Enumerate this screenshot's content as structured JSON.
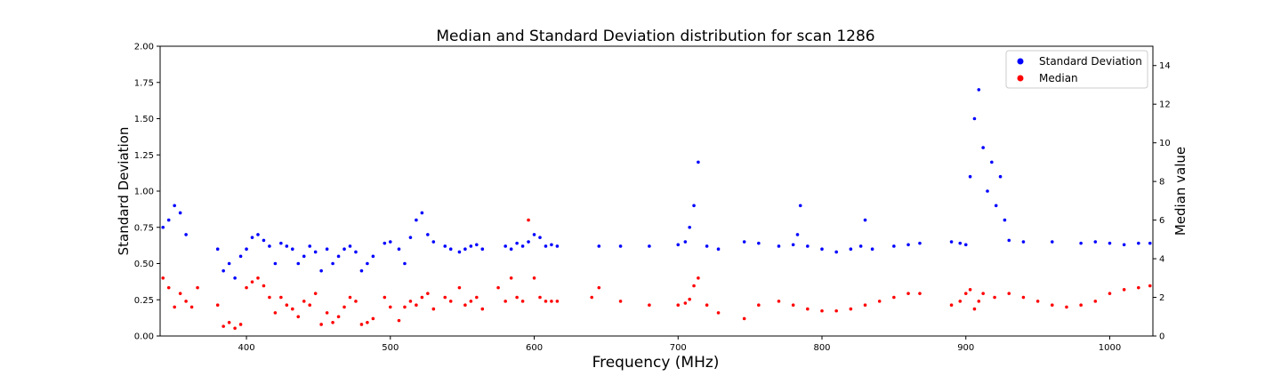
{
  "chart_data": {
    "type": "scatter",
    "title": "Median and Standard Deviation distribution for scan 1286",
    "xlabel": "Frequency (MHz)",
    "ylabel": "Standard Deviation",
    "y2label": "Median value",
    "xlim": [
      340,
      1030
    ],
    "ylim": [
      0,
      2.0
    ],
    "y2lim": [
      0,
      15
    ],
    "x_ticks": [
      400,
      500,
      600,
      700,
      800,
      900,
      1000
    ],
    "y_ticks": [
      "0.00",
      "0.25",
      "0.50",
      "0.75",
      "1.00",
      "1.25",
      "1.50",
      "1.75",
      "2.00"
    ],
    "y2_ticks": [
      0,
      2,
      4,
      6,
      8,
      10,
      12,
      14
    ],
    "legend_position": "top-right",
    "grid": false,
    "series": [
      {
        "name": "Standard Deviation",
        "axis": "left",
        "color": "#0000ff",
        "x": [
          342,
          346,
          350,
          354,
          358,
          380,
          384,
          388,
          392,
          396,
          400,
          404,
          408,
          412,
          416,
          420,
          424,
          428,
          432,
          436,
          440,
          444,
          448,
          452,
          456,
          460,
          464,
          468,
          472,
          476,
          480,
          484,
          488,
          496,
          500,
          506,
          510,
          514,
          518,
          522,
          526,
          530,
          538,
          542,
          548,
          552,
          556,
          560,
          564,
          580,
          584,
          588,
          592,
          596,
          600,
          604,
          608,
          612,
          616,
          645,
          660,
          680,
          700,
          705,
          708,
          711,
          714,
          720,
          728,
          746,
          756,
          770,
          780,
          783,
          785,
          790,
          800,
          810,
          820,
          827,
          830,
          835,
          850,
          860,
          868,
          890,
          896,
          900,
          903,
          906,
          909,
          912,
          915,
          918,
          921,
          924,
          927,
          930,
          940,
          960,
          980,
          990,
          1000,
          1010,
          1020,
          1028
        ],
        "y": [
          0.75,
          0.8,
          0.9,
          0.85,
          0.7,
          0.6,
          0.45,
          0.5,
          0.4,
          0.55,
          0.6,
          0.68,
          0.7,
          0.66,
          0.62,
          0.5,
          0.64,
          0.62,
          0.6,
          0.5,
          0.55,
          0.62,
          0.58,
          0.45,
          0.6,
          0.5,
          0.55,
          0.6,
          0.62,
          0.58,
          0.45,
          0.5,
          0.55,
          0.64,
          0.65,
          0.6,
          0.5,
          0.68,
          0.8,
          0.85,
          0.7,
          0.65,
          0.62,
          0.6,
          0.58,
          0.6,
          0.62,
          0.63,
          0.6,
          0.62,
          0.6,
          0.64,
          0.62,
          0.65,
          0.7,
          0.68,
          0.62,
          0.63,
          0.62,
          0.62,
          0.62,
          0.62,
          0.63,
          0.65,
          0.75,
          0.9,
          1.2,
          0.62,
          0.6,
          0.65,
          0.64,
          0.62,
          0.63,
          0.7,
          0.9,
          0.62,
          0.6,
          0.58,
          0.6,
          0.62,
          0.8,
          0.6,
          0.62,
          0.63,
          0.64,
          0.65,
          0.64,
          0.63,
          1.1,
          1.5,
          1.7,
          1.3,
          1.0,
          1.2,
          0.9,
          1.1,
          0.8,
          0.66,
          0.65,
          0.65,
          0.64,
          0.65,
          0.64,
          0.63,
          0.64,
          0.64
        ]
      },
      {
        "name": "Median",
        "axis": "right",
        "color": "#ff0000",
        "x": [
          342,
          346,
          350,
          354,
          358,
          362,
          366,
          380,
          384,
          388,
          392,
          396,
          400,
          404,
          408,
          412,
          416,
          420,
          424,
          428,
          432,
          436,
          440,
          444,
          448,
          452,
          456,
          460,
          464,
          468,
          472,
          476,
          480,
          484,
          488,
          496,
          500,
          506,
          510,
          514,
          518,
          522,
          526,
          530,
          538,
          542,
          548,
          552,
          556,
          560,
          564,
          575,
          580,
          584,
          588,
          592,
          596,
          600,
          604,
          608,
          612,
          616,
          640,
          645,
          660,
          680,
          700,
          705,
          708,
          711,
          714,
          720,
          728,
          746,
          756,
          770,
          780,
          790,
          800,
          810,
          820,
          830,
          840,
          850,
          860,
          868,
          890,
          896,
          900,
          903,
          906,
          909,
          912,
          920,
          930,
          940,
          950,
          960,
          970,
          980,
          990,
          1000,
          1010,
          1020,
          1028
        ],
        "y": [
          3.0,
          2.5,
          1.5,
          2.2,
          1.8,
          1.5,
          2.5,
          1.6,
          0.5,
          0.7,
          0.4,
          0.6,
          2.5,
          2.8,
          3.0,
          2.6,
          2.0,
          1.2,
          2.0,
          1.6,
          1.4,
          1.0,
          1.8,
          1.6,
          2.2,
          0.6,
          1.2,
          0.7,
          1.0,
          1.5,
          2.0,
          1.8,
          0.6,
          0.7,
          0.9,
          2.0,
          1.5,
          0.8,
          1.5,
          1.8,
          1.6,
          2.0,
          2.2,
          1.4,
          2.0,
          1.8,
          2.5,
          1.6,
          1.8,
          2.0,
          1.4,
          2.5,
          1.8,
          3.0,
          2.0,
          1.8,
          6.0,
          3.0,
          2.0,
          1.8,
          1.8,
          1.8,
          2.0,
          2.5,
          1.8,
          1.6,
          1.6,
          1.7,
          1.9,
          2.6,
          3.0,
          1.6,
          1.2,
          0.9,
          1.6,
          1.8,
          1.6,
          1.4,
          1.3,
          1.3,
          1.4,
          1.6,
          1.8,
          2.0,
          2.2,
          2.2,
          1.6,
          1.8,
          2.2,
          2.4,
          1.4,
          1.8,
          2.2,
          2.0,
          2.2,
          2.0,
          1.8,
          1.6,
          1.5,
          1.6,
          1.8,
          2.2,
          2.4,
          2.5,
          2.6
        ]
      }
    ]
  }
}
